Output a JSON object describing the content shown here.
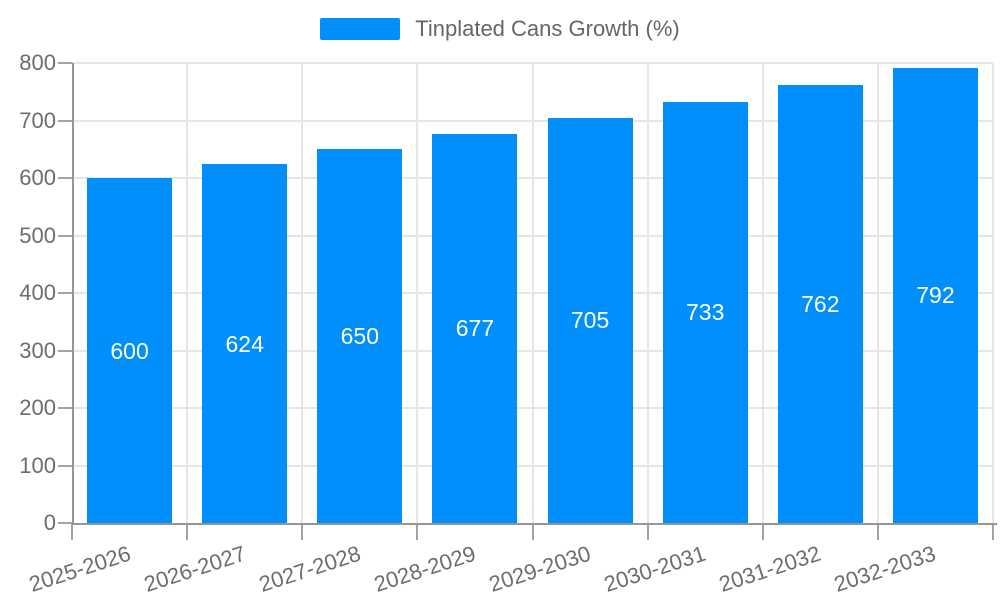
{
  "chart_data": {
    "type": "bar",
    "title": "",
    "legend_position": "top",
    "data_label_position": "center",
    "grid": "on",
    "categories": [
      "2025-2026",
      "2026-2027",
      "2027-2028",
      "2028-2029",
      "2029-2030",
      "2030-2031",
      "2031-2032",
      "2032-2033"
    ],
    "series": [
      {
        "name": "Tinplated Cans Growth (%)",
        "values": [
          600,
          624,
          650,
          677,
          705,
          733,
          762,
          792
        ]
      }
    ],
    "xlabel": "",
    "ylabel": "",
    "ylim": [
      0,
      800
    ],
    "yticks": [
      0,
      100,
      200,
      300,
      400,
      500,
      600,
      700,
      800
    ],
    "colors": {
      "bar": "#008FFB",
      "axis": "#959595",
      "tick": "#a3a3a3",
      "grid": "#e6e6e6",
      "axis_text": "#6d6d6d",
      "legend_text": "#666666",
      "data_label": "#ffffff",
      "background": "#ffffff"
    }
  }
}
